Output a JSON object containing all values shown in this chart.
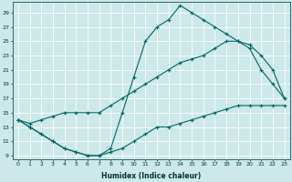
{
  "title": "",
  "xlabel": "Humidex (Indice chaleur)",
  "bg_color": "#cce8e8",
  "grid_color": "#ffffff",
  "line_color": "#006666",
  "xlim": [
    -0.5,
    23.5
  ],
  "ylim": [
    8.5,
    30.5
  ],
  "yticks": [
    9,
    11,
    13,
    15,
    17,
    19,
    21,
    23,
    25,
    27,
    29
  ],
  "xticks": [
    0,
    1,
    2,
    3,
    4,
    5,
    6,
    7,
    8,
    9,
    10,
    11,
    12,
    13,
    14,
    15,
    16,
    17,
    18,
    19,
    20,
    21,
    22,
    23
  ],
  "line1_x": [
    0,
    1,
    2,
    3,
    4,
    5,
    6,
    7,
    8,
    9,
    10,
    11,
    12,
    13,
    14,
    15,
    16,
    17,
    18,
    19,
    20,
    21,
    22,
    23
  ],
  "line1_y": [
    14,
    13,
    12,
    11,
    10,
    9.5,
    9,
    9,
    9.5,
    10,
    11,
    12,
    13,
    13,
    13.5,
    14,
    14.5,
    15,
    15.5,
    16,
    16,
    16,
    16,
    16
  ],
  "line2_x": [
    0,
    1,
    2,
    3,
    4,
    5,
    6,
    7,
    8,
    9,
    10,
    11,
    12,
    13,
    14,
    15,
    16,
    17,
    18,
    19,
    20,
    21,
    22,
    23
  ],
  "line2_y": [
    14,
    13.5,
    14,
    14.5,
    15,
    15,
    15,
    15,
    16,
    17,
    18,
    19,
    20,
    21,
    22,
    22.5,
    23,
    24,
    25,
    25,
    24.5,
    23,
    21,
    17
  ],
  "line3_x": [
    0,
    1,
    2,
    3,
    4,
    5,
    6,
    7,
    8,
    9,
    10,
    11,
    12,
    13,
    14,
    15,
    16,
    17,
    18,
    19,
    20,
    21,
    22,
    23
  ],
  "line3_y": [
    14,
    13,
    12,
    11,
    10,
    9.5,
    9,
    9,
    10,
    15,
    20,
    25,
    27,
    28,
    30,
    29,
    28,
    27,
    26,
    25,
    24,
    21,
    19,
    17
  ]
}
